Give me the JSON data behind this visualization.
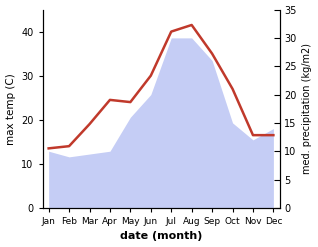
{
  "months": [
    "Jan",
    "Feb",
    "Mar",
    "Apr",
    "May",
    "Jun",
    "Jul",
    "Aug",
    "Sep",
    "Oct",
    "Nov",
    "Dec"
  ],
  "month_indices": [
    0,
    1,
    2,
    3,
    4,
    5,
    6,
    7,
    8,
    9,
    10,
    11
  ],
  "temp": [
    13.5,
    14.0,
    19.0,
    24.5,
    24.0,
    30.0,
    40.0,
    41.5,
    35.0,
    27.0,
    16.5,
    16.5
  ],
  "precip": [
    10.0,
    9.0,
    9.5,
    10.0,
    16.0,
    20.0,
    30.0,
    30.0,
    26.0,
    15.0,
    12.0,
    14.0
  ],
  "temp_color": "#c0392b",
  "precip_fill_color": "#c5cdf5",
  "temp_ylim": [
    0,
    45
  ],
  "precip_ylim": [
    0,
    35
  ],
  "temp_yticks": [
    0,
    10,
    20,
    30,
    40
  ],
  "precip_yticks": [
    0,
    5,
    10,
    15,
    20,
    25,
    30,
    35
  ],
  "xlabel": "date (month)",
  "ylabel_left": "max temp (C)",
  "ylabel_right": "med. precipitation (kg/m2)",
  "background_color": "#ffffff",
  "figsize": [
    3.18,
    2.47
  ],
  "dpi": 100
}
